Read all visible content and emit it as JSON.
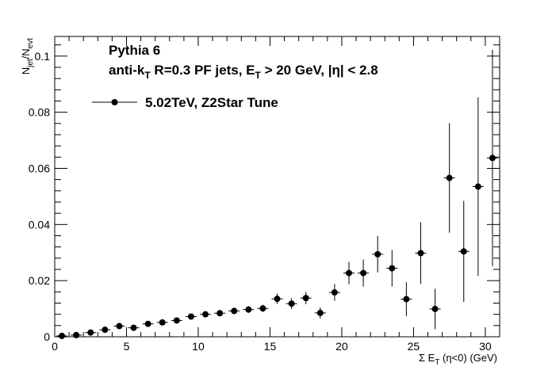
{
  "chart_data": {
    "type": "scatter",
    "title": "",
    "annotations": {
      "line1": "Pythia 6",
      "line2_pre": "anti-k",
      "line2_sub1": "T",
      "line2_mid": " R=0.3 PF jets, E",
      "line2_sub2": "T",
      "line2_post": " > 20 GeV, |η| < 2.8"
    },
    "xlabel": {
      "pre": "Σ E",
      "sub": "T",
      "post": " (η<0) (GeV)"
    },
    "ylabel": {
      "n1": "N",
      "sub1": "jet",
      "slash": "/N",
      "sub2": "evt"
    },
    "xlim": [
      0,
      31
    ],
    "ylim": [
      0,
      0.107
    ],
    "x_ticks": [
      0,
      5,
      10,
      15,
      20,
      25,
      30
    ],
    "y_ticks": [
      0,
      0.02,
      0.04,
      0.06,
      0.08,
      0.1
    ],
    "x_tick_labels": [
      "0",
      "5",
      "10",
      "15",
      "20",
      "25",
      "30"
    ],
    "y_tick_labels": [
      "0",
      "0.02",
      "0.04",
      "0.06",
      "0.08",
      "0.1"
    ],
    "grid": false,
    "legend_position": "top-left",
    "series": [
      {
        "name": "5.02TeV, Z2Star Tune",
        "color": "#000000",
        "x": [
          0.5,
          1.5,
          2.5,
          3.5,
          4.5,
          5.5,
          6.5,
          7.5,
          8.5,
          9.5,
          10.5,
          11.5,
          12.5,
          13.5,
          14.5,
          15.5,
          16.5,
          17.5,
          18.5,
          19.5,
          20.5,
          21.5,
          22.5,
          23.5,
          24.5,
          25.5,
          26.5,
          27.5,
          28.5,
          29.5,
          30.5
        ],
        "y": [
          0.0003,
          0.0006,
          0.0015,
          0.0025,
          0.0038,
          0.0032,
          0.0046,
          0.0051,
          0.0058,
          0.0072,
          0.008,
          0.0084,
          0.0092,
          0.0097,
          0.0101,
          0.0135,
          0.0118,
          0.0138,
          0.0085,
          0.0158,
          0.0227,
          0.0227,
          0.0294,
          0.0244,
          0.0134,
          0.0298,
          0.0099,
          0.0566,
          0.0304,
          0.0535,
          0.0637
        ],
        "yerr": [
          0.0001,
          0.0002,
          0.0003,
          0.0004,
          0.0005,
          0.0005,
          0.0006,
          0.0006,
          0.0007,
          0.0008,
          0.0009,
          0.001,
          0.0011,
          0.0012,
          0.0013,
          0.0018,
          0.0019,
          0.0022,
          0.002,
          0.003,
          0.004,
          0.0048,
          0.0065,
          0.0065,
          0.006,
          0.011,
          0.0072,
          0.0195,
          0.018,
          0.0318,
          0.0385
        ]
      }
    ]
  }
}
